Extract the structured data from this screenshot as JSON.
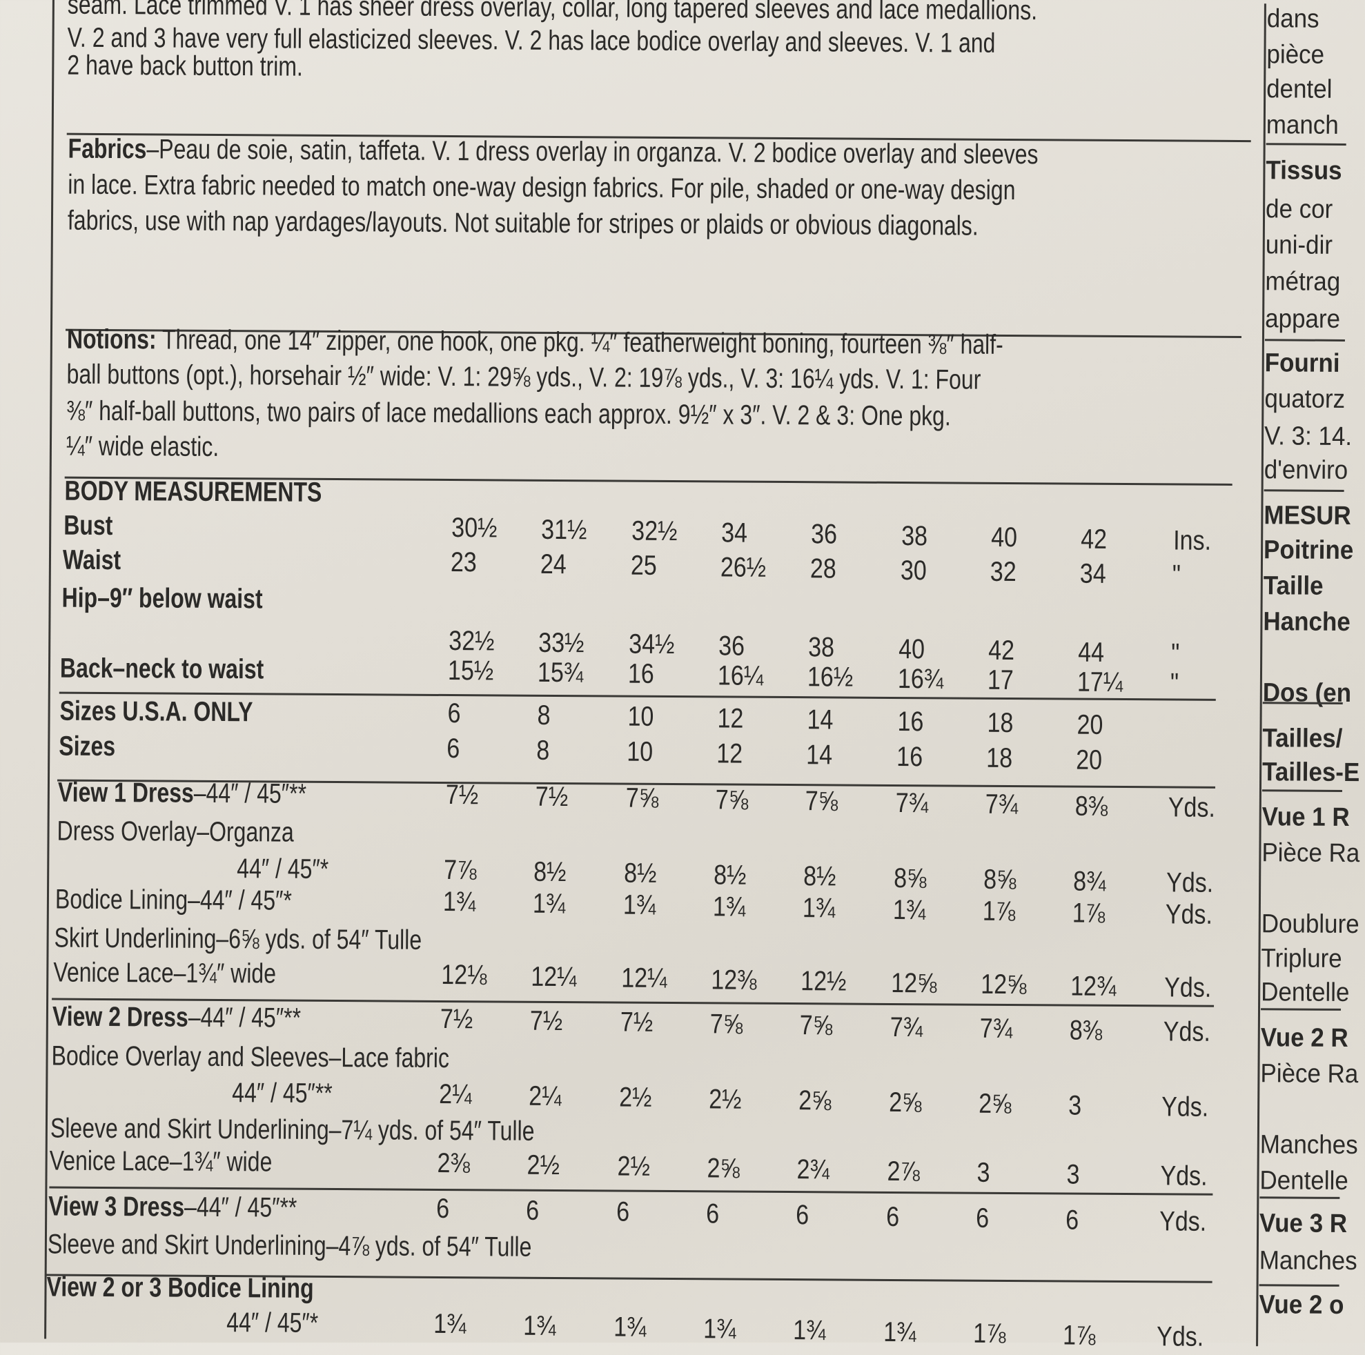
{
  "description_paragraph": [
    "seam. Lace trimmed V. 1 has sheer dress overlay, collar, long tapered sleeves and lace medallions.",
    "V. 2 and 3 have very full elasticized sleeves. V. 2 has lace bodice overlay and sleeves. V. 1 and",
    "2 have back button trim."
  ],
  "fabrics": {
    "heading": "Fabrics",
    "lines": [
      "–Peau de soie, satin, taffeta. V. 1 dress overlay in organza. V. 2 bodice overlay and sleeves",
      "in lace. Extra fabric needed to match one-way design fabrics. For pile, shaded or one-way design",
      "fabrics, use with nap yardages/layouts. Not suitable for stripes or plaids or obvious diagonals."
    ]
  },
  "notions": {
    "heading": "Notions:",
    "lines": [
      " Thread, one 14″ zipper, one hook, one pkg. ¼″ featherweight boning, fourteen ⅜″ half-",
      "ball buttons (opt.), horsehair ½″ wide: V. 1: 29⅝ yds., V. 2: 19⅞ yds., V. 3: 16¼ yds. V. 1: Four",
      "⅜″ half-ball buttons, two pairs of lace medallions each approx. 9½″ x 3″. V. 2 & 3: One pkg.",
      "¼″ wide elastic."
    ]
  },
  "table": {
    "rows": [
      {
        "label": "BODY MEASUREMENTS",
        "bold": true,
        "values": [],
        "unit": ""
      },
      {
        "label": "Bust",
        "bold": true,
        "values": [
          "30½",
          "31½",
          "32½",
          "34",
          "36",
          "38",
          "40",
          "42"
        ],
        "unit": "Ins."
      },
      {
        "label": "Waist",
        "bold": true,
        "values": [
          "23",
          "24",
          "25",
          "26½",
          "28",
          "30",
          "32",
          "34"
        ],
        "unit": "\""
      },
      {
        "label": "Hip–9″ below waist",
        "bold": true,
        "values": [],
        "unit": ""
      },
      {
        "label": "",
        "bold": false,
        "values": [
          "32½",
          "33½",
          "34½",
          "36",
          "38",
          "40",
          "42",
          "44"
        ],
        "unit": "\""
      },
      {
        "label": "Back–neck to waist",
        "bold": true,
        "values": [
          "15½",
          "15¾",
          "16",
          "16¼",
          "16½",
          "16¾",
          "17",
          "17¼"
        ],
        "unit": "\""
      },
      {
        "label": "Sizes   U.S.A. ONLY",
        "bold": true,
        "values": [
          "6",
          "8",
          "10",
          "12",
          "14",
          "16",
          "18",
          "20"
        ],
        "unit": ""
      },
      {
        "label": "Sizes",
        "bold": true,
        "values": [
          "6",
          "8",
          "10",
          "12",
          "14",
          "16",
          "18",
          "20"
        ],
        "unit": ""
      },
      {
        "label": "View 1 Dress",
        "suffix": "–44″ / 45″**",
        "bold": true,
        "values": [
          "7½",
          "7½",
          "7⅝",
          "7⅝",
          "7⅝",
          "7¾",
          "7¾",
          "8⅜"
        ],
        "unit": "Yds."
      },
      {
        "label": "Dress Overlay–Organza",
        "bold": false,
        "values": [],
        "unit": ""
      },
      {
        "label": "44″ / 45″*",
        "indent": true,
        "bold": false,
        "values": [
          "7⅞",
          "8½",
          "8½",
          "8½",
          "8½",
          "8⅝",
          "8⅝",
          "8¾"
        ],
        "unit": "Yds."
      },
      {
        "label": "Bodice Lining–44″ / 45″*",
        "bold": false,
        "values": [
          "1¾",
          "1¾",
          "1¾",
          "1¾",
          "1¾",
          "1¾",
          "1⅞",
          "1⅞"
        ],
        "unit": "Yds."
      },
      {
        "label": "Skirt Underlining–6⅝ yds. of 54″ Tulle",
        "bold": false,
        "values": [],
        "unit": ""
      },
      {
        "label": "Venice Lace–1¾″ wide",
        "bold": false,
        "values": [
          "12⅛",
          "12¼",
          "12¼",
          "12⅜",
          "12½",
          "12⅝",
          "12⅝",
          "12¾"
        ],
        "unit": "Yds."
      },
      {
        "label": "View 2 Dress",
        "suffix": "–44″ / 45″**",
        "bold": true,
        "values": [
          "7½",
          "7½",
          "7½",
          "7⅝",
          "7⅝",
          "7¾",
          "7¾",
          "8⅜"
        ],
        "unit": "Yds."
      },
      {
        "label": "Bodice Overlay and Sleeves–Lace fabric",
        "bold": false,
        "values": [],
        "unit": ""
      },
      {
        "label": "44″ / 45″**",
        "indent": true,
        "bold": false,
        "values": [
          "2¼",
          "2¼",
          "2½",
          "2½",
          "2⅝",
          "2⅝",
          "2⅝",
          "3"
        ],
        "unit": "Yds."
      },
      {
        "label": "Sleeve and Skirt Underlining–7¼ yds. of 54″ Tulle",
        "bold": false,
        "values": [],
        "unit": ""
      },
      {
        "label": "Venice Lace–1¾″ wide",
        "bold": false,
        "values": [
          "2⅜",
          "2½",
          "2½",
          "2⅝",
          "2¾",
          "2⅞",
          "3",
          "3"
        ],
        "unit": "Yds."
      },
      {
        "label": "View 3 Dress",
        "suffix": "–44″ / 45″**",
        "bold": true,
        "values": [
          "6",
          "6",
          "6",
          "6",
          "6",
          "6",
          "6",
          "6"
        ],
        "unit": "Yds."
      },
      {
        "label": "Sleeve and Skirt Underlining–4⅞ yds. of 54″ Tulle",
        "bold": false,
        "values": [],
        "unit": ""
      },
      {
        "label": "View 2 or 3 Bodice Lining",
        "bold": true,
        "values": [],
        "unit": ""
      },
      {
        "label": "44″ / 45″*",
        "indent": true,
        "bold": false,
        "values": [
          "1¾",
          "1¾",
          "1¾",
          "1¾",
          "1¾",
          "1¾",
          "1⅞",
          "1⅞"
        ],
        "unit": "Yds."
      }
    ]
  },
  "french_column": [
    {
      "text": "dans",
      "bold": false
    },
    {
      "text": "pièce",
      "bold": false
    },
    {
      "text": "dentel",
      "bold": false
    },
    {
      "text": "manch",
      "bold": false
    },
    {
      "text": "Tissus",
      "bold": true
    },
    {
      "text": "de cor",
      "bold": false
    },
    {
      "text": "uni-dir",
      "bold": false
    },
    {
      "text": "métrag",
      "bold": false
    },
    {
      "text": "appare",
      "bold": false
    },
    {
      "text": "Fourni",
      "bold": true
    },
    {
      "text": "quatorz",
      "bold": false
    },
    {
      "text": "V. 3: 14.",
      "bold": false
    },
    {
      "text": "d'enviro",
      "bold": false
    },
    {
      "text": "MESUR",
      "bold": true
    },
    {
      "text": "Poitrine",
      "bold": true
    },
    {
      "text": "Taille",
      "bold": true
    },
    {
      "text": "Hanche",
      "bold": true
    },
    {
      "text": "Dos (en",
      "bold": true
    },
    {
      "text": "Tailles/",
      "bold": true
    },
    {
      "text": "Tailles-E",
      "bold": true
    },
    {
      "text": "Vue 1 R",
      "bold": true
    },
    {
      "text": "Pièce Ra",
      "bold": false
    },
    {
      "text": "Doublure",
      "bold": false
    },
    {
      "text": "Triplure",
      "bold": false
    },
    {
      "text": "Dentelle",
      "bold": false
    },
    {
      "text": "Vue 2 R",
      "bold": true
    },
    {
      "text": "Pièce Ra",
      "bold": false
    },
    {
      "text": "Manches",
      "bold": false
    },
    {
      "text": "Dentelle",
      "bold": false
    },
    {
      "text": "Vue 3 R",
      "bold": true
    },
    {
      "text": "Manches",
      "bold": false
    },
    {
      "text": "Vue 2 o",
      "bold": true
    }
  ]
}
